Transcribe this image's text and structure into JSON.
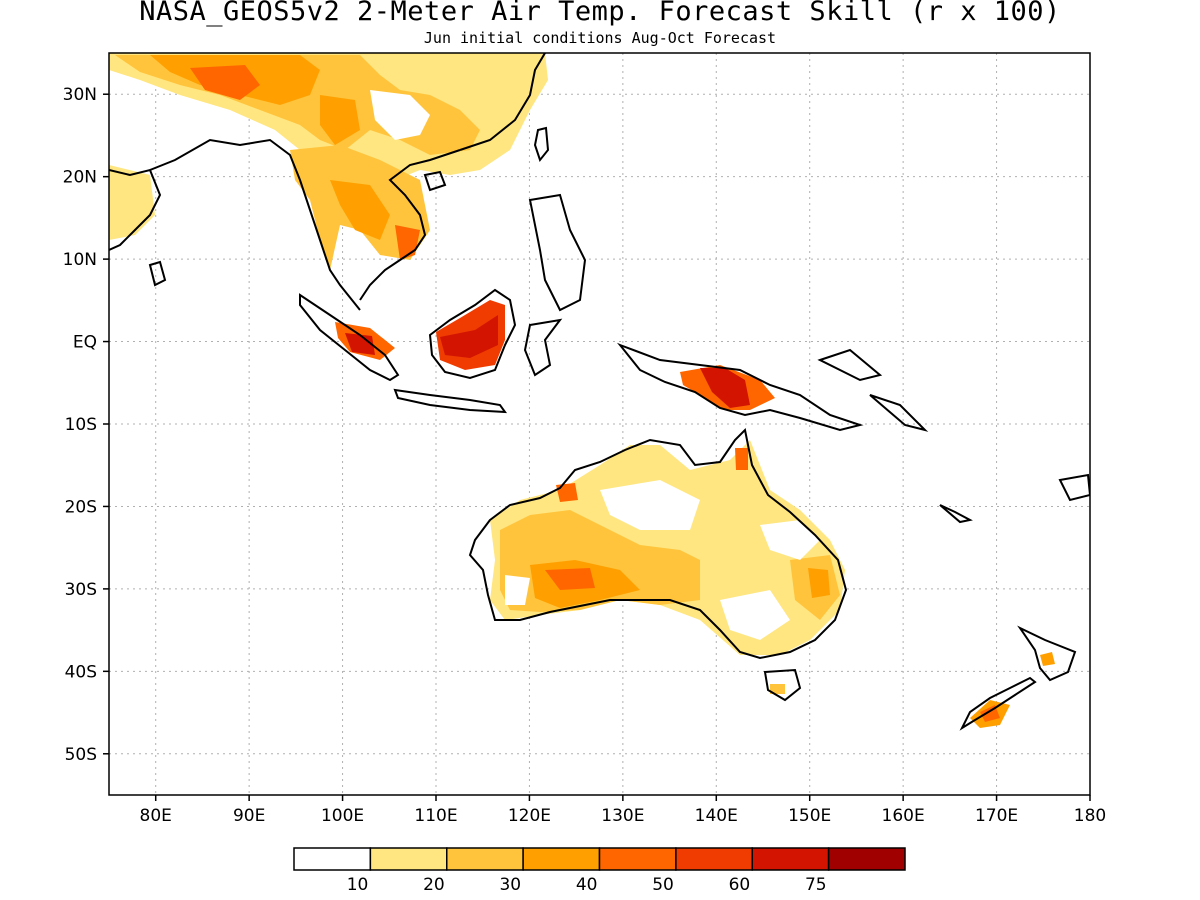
{
  "header": {
    "title": "NASA_GEOS5v2 2-Meter Air Temp. Forecast Skill (r x 100)",
    "subtitle": "Jun initial conditions  Aug-Oct Forecast"
  },
  "map": {
    "lon_range": [
      75,
      180
    ],
    "lat_range": [
      -55,
      35
    ],
    "lon_ticks": [
      {
        "value": 80,
        "label": "80E"
      },
      {
        "value": 90,
        "label": "90E"
      },
      {
        "value": 100,
        "label": "100E"
      },
      {
        "value": 110,
        "label": "110E"
      },
      {
        "value": 120,
        "label": "120E"
      },
      {
        "value": 130,
        "label": "130E"
      },
      {
        "value": 140,
        "label": "140E"
      },
      {
        "value": 150,
        "label": "150E"
      },
      {
        "value": 160,
        "label": "160E"
      },
      {
        "value": 170,
        "label": "170E"
      },
      {
        "value": 180,
        "label": "180"
      }
    ],
    "lat_ticks": [
      {
        "value": 30,
        "label": "30N"
      },
      {
        "value": 20,
        "label": "20N"
      },
      {
        "value": 10,
        "label": "10N"
      },
      {
        "value": 0,
        "label": "EQ"
      },
      {
        "value": -10,
        "label": "10S"
      },
      {
        "value": -20,
        "label": "20S"
      },
      {
        "value": -30,
        "label": "30S"
      },
      {
        "value": -40,
        "label": "40S"
      },
      {
        "value": -50,
        "label": "50S"
      }
    ],
    "grid": true
  },
  "colorbar": {
    "colors": [
      "#ffffff",
      "#ffe680",
      "#ffc43c",
      "#ffa000",
      "#ff6600",
      "#f03c00",
      "#d21400",
      "#a00000"
    ],
    "labels": [
      "10",
      "20",
      "30",
      "40",
      "50",
      "60",
      "75"
    ]
  }
}
